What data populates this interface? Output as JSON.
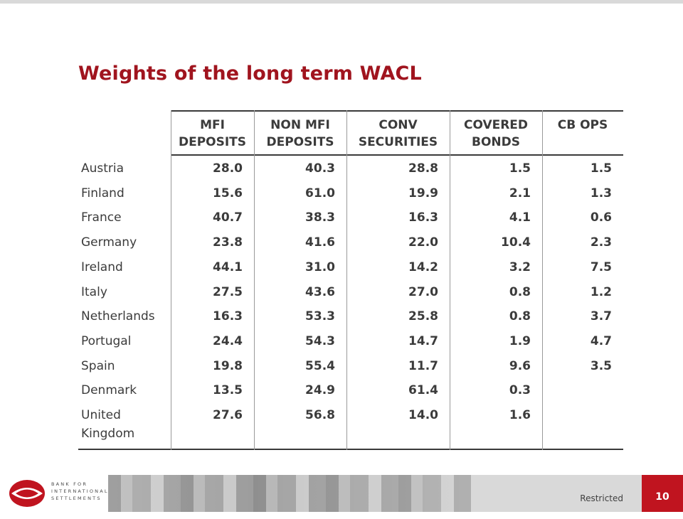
{
  "slide": {
    "title": "Weights of the long term WACL"
  },
  "table": {
    "headers": [
      [
        "MFI",
        "DEPOSITS"
      ],
      [
        "NON MFI",
        "DEPOSITS"
      ],
      [
        "CONV",
        "SECURITIES"
      ],
      [
        "COVERED",
        "BONDS"
      ],
      [
        "CB OPS",
        ""
      ]
    ],
    "rows": [
      {
        "country": [
          "Austria"
        ],
        "values": [
          "28.0",
          "40.3",
          "28.8",
          "1.5",
          "1.5"
        ]
      },
      {
        "country": [
          "Finland"
        ],
        "values": [
          "15.6",
          "61.0",
          "19.9",
          "2.1",
          "1.3"
        ]
      },
      {
        "country": [
          "France"
        ],
        "values": [
          "40.7",
          "38.3",
          "16.3",
          "4.1",
          "0.6"
        ]
      },
      {
        "country": [
          "Germany"
        ],
        "values": [
          "23.8",
          "41.6",
          "22.0",
          "10.4",
          "2.3"
        ]
      },
      {
        "country": [
          "Ireland"
        ],
        "values": [
          "44.1",
          "31.0",
          "14.2",
          "3.2",
          "7.5"
        ]
      },
      {
        "country": [
          "Italy"
        ],
        "values": [
          "27.5",
          "43.6",
          "27.0",
          "0.8",
          "1.2"
        ]
      },
      {
        "country": [
          "Netherlands"
        ],
        "values": [
          "16.3",
          "53.3",
          "25.8",
          "0.8",
          "3.7"
        ]
      },
      {
        "country": [
          "Portugal"
        ],
        "values": [
          "24.4",
          "54.3",
          "14.7",
          "1.9",
          "4.7"
        ]
      },
      {
        "country": [
          "Spain"
        ],
        "values": [
          "19.8",
          "55.4",
          "11.7",
          "9.6",
          "3.5"
        ]
      },
      {
        "country": [
          "Denmark"
        ],
        "values": [
          "13.5",
          "24.9",
          "61.4",
          "0.3",
          ""
        ]
      },
      {
        "country": [
          "United",
          "Kingdom"
        ],
        "values": [
          "27.6",
          "56.8",
          "14.0",
          "1.6",
          ""
        ]
      }
    ]
  },
  "footer": {
    "logo_lines": [
      "BANK FOR",
      "INTERNATIONAL",
      "SETTLEMENTS"
    ],
    "classification": "Restricted",
    "page_number": "10",
    "accent_color": "#c0141f"
  }
}
